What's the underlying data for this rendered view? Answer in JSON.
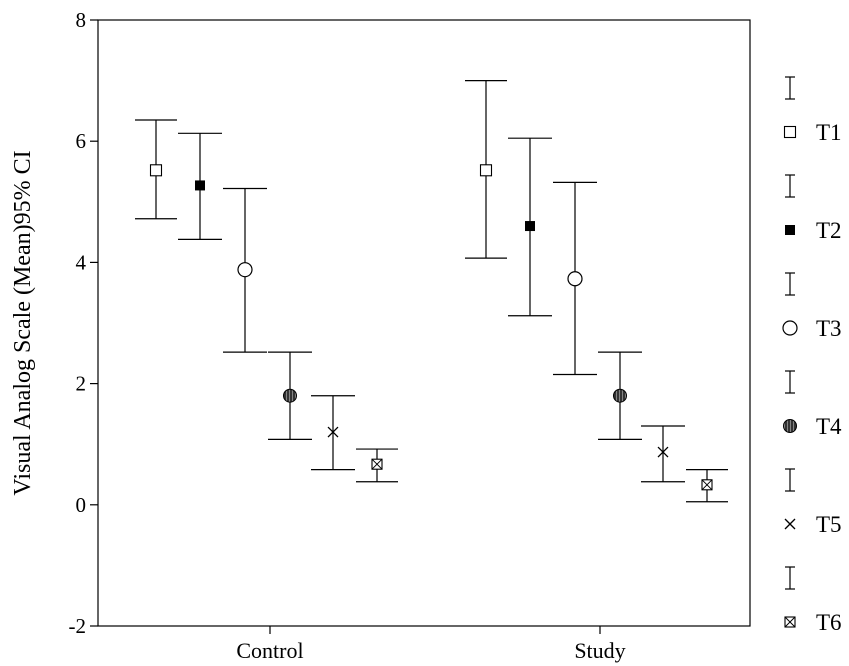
{
  "chart_data": {
    "type": "errorbar",
    "title": "",
    "xlabel": "",
    "ylabel": "Visual Analog Scale (Mean)95% CI",
    "categories": [
      "Control",
      "Study"
    ],
    "ylim": [
      -2,
      8
    ],
    "yticks": [
      -2,
      0,
      2,
      4,
      6,
      8
    ],
    "grid": false,
    "legend_position": "right",
    "series": [
      {
        "name": "T1",
        "marker": "open-square",
        "points": [
          {
            "mean": 5.52,
            "low": 4.72,
            "high": 6.35
          },
          {
            "mean": 5.52,
            "low": 4.07,
            "high": 7.0
          }
        ]
      },
      {
        "name": "T2",
        "marker": "filled-square",
        "points": [
          {
            "mean": 5.27,
            "low": 4.38,
            "high": 6.13
          },
          {
            "mean": 4.6,
            "low": 3.12,
            "high": 6.05
          }
        ]
      },
      {
        "name": "T3",
        "marker": "open-circle",
        "points": [
          {
            "mean": 3.88,
            "low": 2.52,
            "high": 5.22
          },
          {
            "mean": 3.73,
            "low": 2.15,
            "high": 5.32
          }
        ]
      },
      {
        "name": "T4",
        "marker": "hatched-circle",
        "points": [
          {
            "mean": 1.8,
            "low": 1.08,
            "high": 2.52
          },
          {
            "mean": 1.8,
            "low": 1.08,
            "high": 2.52
          }
        ]
      },
      {
        "name": "T5",
        "marker": "x",
        "points": [
          {
            "mean": 1.2,
            "low": 0.58,
            "high": 1.8
          },
          {
            "mean": 0.87,
            "low": 0.38,
            "high": 1.3
          }
        ]
      },
      {
        "name": "T6",
        "marker": "crossed-square",
        "points": [
          {
            "mean": 0.67,
            "low": 0.38,
            "high": 0.92
          },
          {
            "mean": 0.33,
            "low": 0.05,
            "high": 0.58
          }
        ]
      }
    ]
  }
}
